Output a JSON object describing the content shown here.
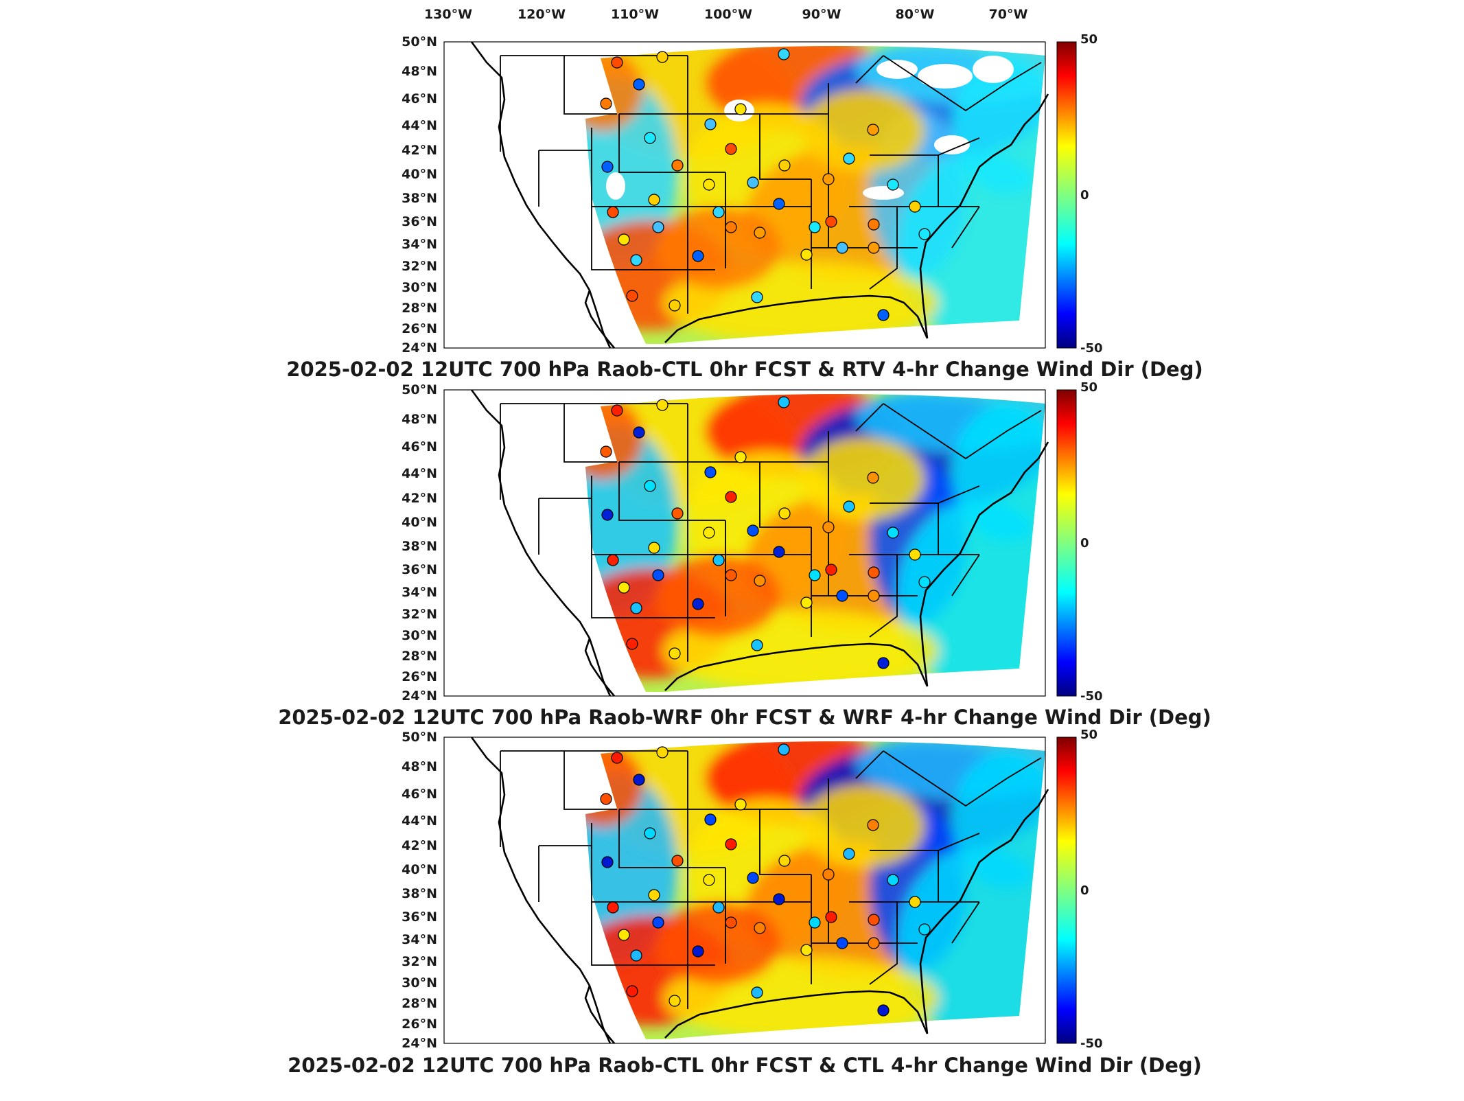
{
  "longitude_labels": [
    "130°W",
    "120°W",
    "110°W",
    "100°W",
    "90°W",
    "80°W",
    "70°W"
  ],
  "latitude_labels": [
    "50°N",
    "48°N",
    "46°N",
    "44°N",
    "42°N",
    "40°N",
    "38°N",
    "36°N",
    "34°N",
    "32°N",
    "30°N",
    "28°N",
    "26°N",
    "24°N"
  ],
  "colorbar": {
    "max_label": "50",
    "mid_label": "0",
    "min_label": "-50",
    "colormap": "jet",
    "stops": [
      "#00007f",
      "#0000ff",
      "#0080ff",
      "#00ffff",
      "#80ff80",
      "#ffff00",
      "#ff8000",
      "#ff0000",
      "#7f0000"
    ]
  },
  "panels": [
    {
      "title": "2025-02-02 12UTC 700 hPa Raob-CTL 0hr FCST & RTV 4-hr Change Wind Dir (Deg)",
      "has_missing_data_gaps": true
    },
    {
      "title": "2025-02-02 12UTC 700 hPa Raob-WRF 0hr FCST & WRF 4-hr Change Wind Dir (Deg)",
      "has_missing_data_gaps": false
    },
    {
      "title": "2025-02-02 12UTC 700 hPa Raob-CTL 0hr FCST & CTL 4-hr Change Wind Dir (Deg)",
      "has_missing_data_gaps": false
    }
  ]
}
